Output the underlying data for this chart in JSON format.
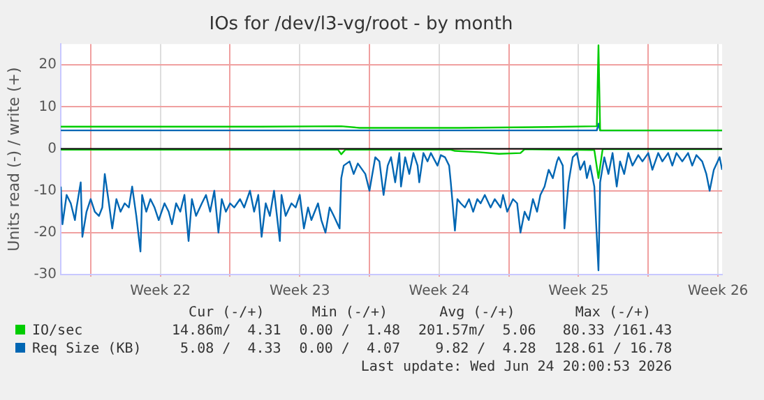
{
  "chart_data": {
    "type": "line",
    "title": "IOs for /dev/l3-vg/root - by month",
    "ylabel": "Units read (-) / write (+)",
    "xlim": [
      "2026-05-23T12:00",
      "2026-06-25T17:00"
    ],
    "xticks": [
      {
        "value": "2026-05-25T00:00",
        "label": null
      },
      {
        "value": "2026-05-28T12:00",
        "label": "Week 22"
      },
      {
        "value": "2026-06-01T00:00",
        "label": null
      },
      {
        "value": "2026-06-04T12:00",
        "label": "Week 23"
      },
      {
        "value": "2026-06-08T00:00",
        "label": null
      },
      {
        "value": "2026-06-11T12:00",
        "label": "Week 24"
      },
      {
        "value": "2026-06-15T00:00",
        "label": null
      },
      {
        "value": "2026-06-18T12:00",
        "label": "Week 25"
      },
      {
        "value": "2026-06-22T00:00",
        "label": null
      },
      {
        "value": "2026-06-25T12:00",
        "label": "Week 26"
      }
    ],
    "ylim": [
      -30,
      25
    ],
    "yticks": [
      -30,
      -20,
      -10,
      0,
      10,
      20
    ],
    "grid": true,
    "legend": "bottom",
    "marker": "none",
    "line_style": "solid",
    "ref_lines": [
      {
        "axis": "y",
        "value": 0,
        "color": "#000000"
      }
    ],
    "series": [
      {
        "name": "IO/sec",
        "color": "#00cc00",
        "x": [
          "2026-05-23T12:00",
          "2026-05-28T12:00",
          "2026-06-02T12:00",
          "2026-06-06T14:00",
          "2026-06-07T12:00",
          "2026-06-12T12:00",
          "2026-06-17T00:00",
          "2026-06-19T10:00",
          "2026-06-19T12:00",
          "2026-06-19T14:00",
          "2026-06-25T17:00"
        ],
        "values": [
          5.3,
          5.3,
          5.3,
          5.4,
          5.0,
          5.0,
          5.2,
          5.4,
          24.7,
          4.4,
          4.4
        ]
      },
      {
        "color": "#00cc00",
        "x": [
          "2026-05-23T12:00",
          "2026-06-06T10:00",
          "2026-06-06T14:00",
          "2026-06-06T19:00",
          "2026-06-12T02:00",
          "2026-06-12T07:00",
          "2026-06-13T12:00",
          "2026-06-14T12:00",
          "2026-06-15T14:00",
          "2026-06-15T19:00",
          "2026-06-19T07:00",
          "2026-06-19T12:00",
          "2026-06-19T17:00",
          "2026-06-25T17:00"
        ],
        "values": [
          -0.2,
          -0.2,
          -1.3,
          -0.2,
          -0.2,
          -0.5,
          -0.8,
          -1.2,
          -1.0,
          -0.1,
          -0.3,
          -7,
          -0.1,
          -0.1
        ]
      },
      {
        "name": "Req Size (KB)",
        "color": "#0066b3",
        "x": [
          "2026-05-23T12:00",
          "2026-06-06T14:00",
          "2026-06-19T10:00",
          "2026-06-19T12:00",
          "2026-06-19T14:00",
          "2026-06-25T17:00"
        ],
        "values": [
          4.4,
          4.4,
          4.4,
          6,
          4.4,
          4.4
        ]
      },
      {
        "color": "#0066b3",
        "x": [
          "2026-05-23T12:00",
          "2026-05-23T14:00",
          "2026-05-23T19:00",
          "2026-05-24T00:00",
          "2026-05-24T05:00",
          "2026-05-24T07:00",
          "2026-05-24T12:00",
          "2026-05-24T14:00",
          "2026-05-24T19:00",
          "2026-05-25T00:00",
          "2026-05-25T05:00",
          "2026-05-25T10:00",
          "2026-05-25T14:00",
          "2026-05-25T17:00",
          "2026-05-25T22:00",
          "2026-05-26T02:00",
          "2026-05-26T07:00",
          "2026-05-26T12:00",
          "2026-05-26T17:00",
          "2026-05-26T22:00",
          "2026-05-27T02:00",
          "2026-05-27T07:00",
          "2026-05-27T12:00",
          "2026-05-27T14:00",
          "2026-05-27T19:00",
          "2026-05-28T00:00",
          "2026-05-28T05:00",
          "2026-05-28T10:00",
          "2026-05-28T17:00",
          "2026-05-28T22:00",
          "2026-05-29T02:00",
          "2026-05-29T07:00",
          "2026-05-29T12:00",
          "2026-05-29T17:00",
          "2026-05-29T22:00",
          "2026-05-30T02:00",
          "2026-05-30T07:00",
          "2026-05-30T14:00",
          "2026-05-30T19:00",
          "2026-05-31T00:00",
          "2026-05-31T05:00",
          "2026-05-31T10:00",
          "2026-05-31T14:00",
          "2026-05-31T19:00",
          "2026-06-01T00:00",
          "2026-06-01T05:00",
          "2026-06-01T12:00",
          "2026-06-01T17:00",
          "2026-06-02T00:00",
          "2026-06-02T05:00",
          "2026-06-02T10:00",
          "2026-06-02T14:00",
          "2026-06-02T19:00",
          "2026-06-03T00:00",
          "2026-06-03T05:00",
          "2026-06-03T12:00",
          "2026-06-03T14:00",
          "2026-06-03T19:00",
          "2026-06-04T02:00",
          "2026-06-04T07:00",
          "2026-06-04T12:00",
          "2026-06-04T17:00",
          "2026-06-04T22:00",
          "2026-06-05T02:00",
          "2026-06-05T10:00",
          "2026-06-05T14:00",
          "2026-06-05T19:00",
          "2026-06-06T00:00",
          "2026-06-06T05:00",
          "2026-06-06T12:00",
          "2026-06-06T14:00",
          "2026-06-06T17:00",
          "2026-06-07T00:00",
          "2026-06-07T05:00",
          "2026-06-07T10:00",
          "2026-06-07T19:00",
          "2026-06-08T00:00",
          "2026-06-08T07:00",
          "2026-06-08T12:00",
          "2026-06-08T17:00",
          "2026-06-08T22:00",
          "2026-06-09T02:00",
          "2026-06-09T07:00",
          "2026-06-09T12:00",
          "2026-06-09T14:00",
          "2026-06-09T19:00",
          "2026-06-10T00:00",
          "2026-06-10T05:00",
          "2026-06-10T10:00",
          "2026-06-10T12:00",
          "2026-06-10T17:00",
          "2026-06-10T22:00",
          "2026-06-11T02:00",
          "2026-06-11T10:00",
          "2026-06-11T14:00",
          "2026-06-11T19:00",
          "2026-06-12T00:00",
          "2026-06-12T02:00",
          "2026-06-12T07:00",
          "2026-06-12T10:00",
          "2026-06-12T14:00",
          "2026-06-12T19:00",
          "2026-06-13T00:00",
          "2026-06-13T05:00",
          "2026-06-13T10:00",
          "2026-06-13T14:00",
          "2026-06-13T19:00",
          "2026-06-14T02:00",
          "2026-06-14T07:00",
          "2026-06-14T14:00",
          "2026-06-14T17:00",
          "2026-06-14T22:00",
          "2026-06-15T05:00",
          "2026-06-15T10:00",
          "2026-06-15T14:00",
          "2026-06-15T19:00",
          "2026-06-16T00:00",
          "2026-06-16T05:00",
          "2026-06-16T10:00",
          "2026-06-16T14:00",
          "2026-06-16T19:00",
          "2026-06-17T00:00",
          "2026-06-17T05:00",
          "2026-06-17T10:00",
          "2026-06-17T12:00",
          "2026-06-17T17:00",
          "2026-06-17T19:00",
          "2026-06-18T00:00",
          "2026-06-18T05:00",
          "2026-06-18T10:00",
          "2026-06-18T14:00",
          "2026-06-18T19:00",
          "2026-06-18T22:00",
          "2026-06-19T02:00",
          "2026-06-19T07:00",
          "2026-06-19T12:00",
          "2026-06-19T14:00",
          "2026-06-19T19:00",
          "2026-06-20T00:00",
          "2026-06-20T05:00",
          "2026-06-20T10:00",
          "2026-06-20T14:00",
          "2026-06-20T19:00",
          "2026-06-21T00:00",
          "2026-06-21T05:00",
          "2026-06-21T12:00",
          "2026-06-21T17:00",
          "2026-06-22T00:00",
          "2026-06-22T05:00",
          "2026-06-22T12:00",
          "2026-06-22T17:00",
          "2026-06-23T00:00",
          "2026-06-23T05:00",
          "2026-06-23T10:00",
          "2026-06-23T17:00",
          "2026-06-24T00:00",
          "2026-06-24T05:00",
          "2026-06-24T10:00",
          "2026-06-24T17:00",
          "2026-06-24T22:00",
          "2026-06-25T02:00",
          "2026-06-25T07:00",
          "2026-06-25T14:00",
          "2026-06-25T17:00"
        ],
        "values": [
          -9,
          -18,
          -11,
          -13,
          -17,
          -14,
          -8,
          -21,
          -15,
          -12,
          -15,
          -16,
          -14,
          -6,
          -13,
          -19,
          -12,
          -15,
          -13,
          -14,
          -9,
          -16,
          -24.5,
          -11,
          -15,
          -12,
          -14,
          -17,
          -13,
          -15,
          -18,
          -13,
          -15,
          -11,
          -22,
          -12,
          -16,
          -13,
          -11,
          -15,
          -10,
          -20,
          -12,
          -15,
          -13,
          -14,
          -12,
          -14,
          -10,
          -15,
          -11,
          -21,
          -13,
          -16,
          -10,
          -22,
          -11,
          -16,
          -13,
          -14,
          -11,
          -19,
          -14,
          -17,
          -13,
          -17,
          -20,
          -14,
          -16,
          -19,
          -7,
          -4,
          -3,
          -6,
          -3.5,
          -6,
          -10,
          -2,
          -3,
          -11,
          -4,
          -2,
          -8,
          -1,
          -9,
          -2,
          -6,
          -1,
          -4,
          -8,
          -1,
          -3,
          -1,
          -4,
          -1.5,
          -2,
          -4,
          -8,
          -19.5,
          -12,
          -13,
          -14,
          -12,
          -15,
          -12,
          -13,
          -11,
          -14,
          -12,
          -14,
          -11,
          -15,
          -12,
          -13,
          -20,
          -15,
          -17,
          -12,
          -15,
          -11,
          -9,
          -5,
          -7,
          -3,
          -2,
          -4,
          -19,
          -8,
          -2,
          -1,
          -5,
          -3,
          -7,
          -4,
          -9,
          -29,
          -8,
          -2,
          -6,
          -1,
          -9,
          -3,
          -6,
          -1,
          -4,
          -1.5,
          -3,
          -1,
          -5,
          -1,
          -3,
          -1,
          -4,
          -1,
          -3,
          -1,
          -4,
          -1.5,
          -3,
          -6,
          -10,
          -5,
          -2,
          -5
        ]
      }
    ],
    "annotations": [
      "Cur (-/+)",
      "Min (-/+)",
      "Avg (-/+)",
      "Max (-/+)",
      "14.86m/  4.31",
      "0.00 /  1.48",
      "201.57m/  5.06",
      "80.33 /161.43",
      "5.08 /  4.33",
      "0.00 /  4.07",
      "9.82 /  4.28",
      "128.61 / 16.78",
      "Last update: Wed Jun 24 20:00:53 2026"
    ]
  }
}
